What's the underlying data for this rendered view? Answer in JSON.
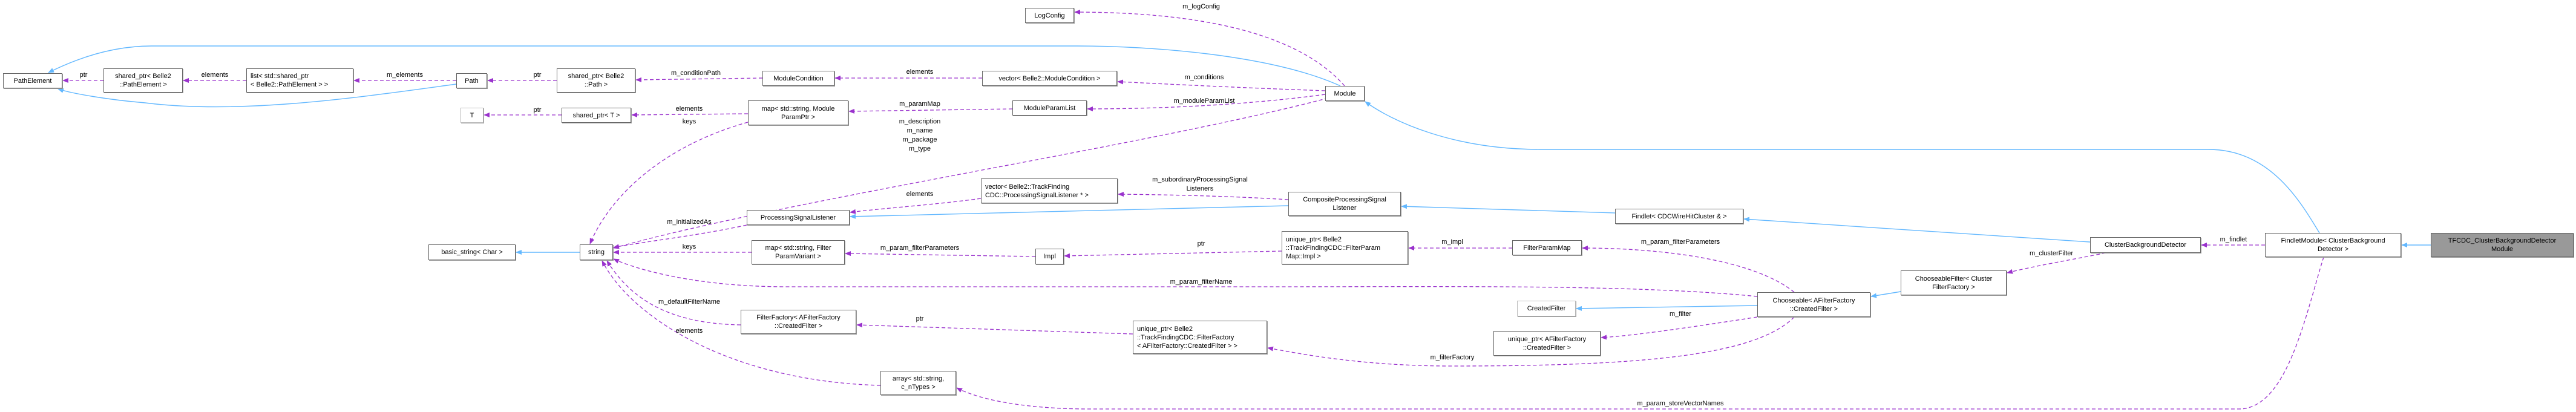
{
  "colors": {
    "association": "#9a32cd",
    "inheritance": "#63b8ff",
    "focus_fill": "#999999",
    "node_border": "#666666"
  },
  "nodes": [
    {
      "id": "PathElement",
      "lines": [
        "PathElement"
      ]
    },
    {
      "id": "SharedPtrPathElement",
      "lines": [
        "shared_ptr< Belle2",
        "::PathElement >"
      ]
    },
    {
      "id": "ListSharedPtr",
      "lines": [
        "list< std::shared_ptr",
        "< Belle2::PathElement > >"
      ]
    },
    {
      "id": "Path",
      "lines": [
        "Path"
      ]
    },
    {
      "id": "SharedPtrPath",
      "lines": [
        "shared_ptr< Belle2",
        "::Path >"
      ]
    },
    {
      "id": "T",
      "lines": [
        "T"
      ]
    },
    {
      "id": "SharedPtrT",
      "lines": [
        "shared_ptr< T >"
      ]
    },
    {
      "id": "LogConfig",
      "lines": [
        "LogConfig"
      ]
    },
    {
      "id": "ModuleCondition",
      "lines": [
        "ModuleCondition"
      ]
    },
    {
      "id": "VectorModuleCondition",
      "lines": [
        "vector< Belle2::ModuleCondition >"
      ]
    },
    {
      "id": "Module",
      "lines": [
        "Module"
      ]
    },
    {
      "id": "MapModuleParamPtr",
      "lines": [
        "map< std::string, Module",
        "ParamPtr >"
      ]
    },
    {
      "id": "ModuleParamList",
      "lines": [
        "ModuleParamList"
      ]
    },
    {
      "id": "BasicString",
      "lines": [
        "basic_string< Char >"
      ]
    },
    {
      "id": "String",
      "lines": [
        "string"
      ]
    },
    {
      "id": "VectorPSL",
      "lines": [
        "vector< Belle2::TrackFinding",
        "CDC::ProcessingSignalListener * >"
      ]
    },
    {
      "id": "ProcessingSignalListener",
      "lines": [
        "ProcessingSignalListener"
      ]
    },
    {
      "id": "CompositePSL",
      "lines": [
        "CompositeProcessingSignal",
        "Listener"
      ]
    },
    {
      "id": "MapFilterParamVariant",
      "lines": [
        "map< std::string, Filter",
        "ParamVariant >"
      ]
    },
    {
      "id": "Impl",
      "lines": [
        "Impl"
      ]
    },
    {
      "id": "UniquePtrImpl",
      "lines": [
        "unique_ptr< Belle2",
        "::TrackFindingCDC::FilterParam",
        "Map::Impl >"
      ]
    },
    {
      "id": "FilterParamMap",
      "lines": [
        "FilterParamMap"
      ]
    },
    {
      "id": "FilterFactory",
      "lines": [
        "FilterFactory< AFilterFactory",
        "::CreatedFilter >"
      ]
    },
    {
      "id": "UniquePtrFilterFactory",
      "lines": [
        "unique_ptr< Belle2",
        "::TrackFindingCDC::FilterFactory",
        "< AFilterFactory::CreatedFilter > >"
      ]
    },
    {
      "id": "ArrayString",
      "lines": [
        "array< std::string,",
        "c_nTypes >"
      ]
    },
    {
      "id": "CreatedFilter",
      "lines": [
        "CreatedFilter"
      ]
    },
    {
      "id": "UniquePtrCreatedFilter",
      "lines": [
        "unique_ptr< AFilterFactory",
        "::CreatedFilter >"
      ]
    },
    {
      "id": "Chooseable",
      "lines": [
        "Chooseable< AFilterFactory",
        "::CreatedFilter >"
      ]
    },
    {
      "id": "ChooseableFilter",
      "lines": [
        "ChooseableFilter< Cluster",
        "FilterFactory >"
      ]
    },
    {
      "id": "Findlet",
      "lines": [
        "Findlet< CDCWireHitCluster & >"
      ]
    },
    {
      "id": "ClusterBackgroundDetector",
      "lines": [
        "ClusterBackgroundDetector"
      ]
    },
    {
      "id": "FindletModule",
      "lines": [
        "FindletModule< ClusterBackground",
        "Detector >"
      ]
    },
    {
      "id": "TFCDCModule",
      "lines": [
        "TFCDC_ClusterBackgroundDetector",
        "Module"
      ]
    }
  ],
  "edges": [
    {
      "from": "SharedPtrPathElement",
      "to": "PathElement",
      "kind": "association",
      "label": [
        "ptr"
      ]
    },
    {
      "from": "ListSharedPtr",
      "to": "SharedPtrPathElement",
      "kind": "association",
      "label": [
        "elements"
      ]
    },
    {
      "from": "Path",
      "to": "ListSharedPtr",
      "kind": "association",
      "label": [
        "m_elements"
      ]
    },
    {
      "from": "SharedPtrPath",
      "to": "Path",
      "kind": "association",
      "label": [
        "ptr"
      ]
    },
    {
      "from": "ModuleCondition",
      "to": "SharedPtrPath",
      "kind": "association",
      "label": [
        "m_conditionPath"
      ]
    },
    {
      "from": "VectorModuleCondition",
      "to": "ModuleCondition",
      "kind": "association",
      "label": [
        "elements"
      ]
    },
    {
      "from": "Module",
      "to": "VectorModuleCondition",
      "kind": "association",
      "label": [
        "m_conditions"
      ]
    },
    {
      "from": "Module",
      "to": "LogConfig",
      "kind": "association",
      "label": [
        "m_logConfig"
      ]
    },
    {
      "from": "Module",
      "to": "ModuleParamList",
      "kind": "association",
      "label": [
        "m_moduleParamList"
      ]
    },
    {
      "from": "ModuleParamList",
      "to": "MapModuleParamPtr",
      "kind": "association",
      "label": [
        "m_paramMap"
      ]
    },
    {
      "from": "MapModuleParamPtr",
      "to": "SharedPtrT",
      "kind": "association",
      "label": [
        "elements"
      ]
    },
    {
      "from": "MapModuleParamPtr",
      "to": "String",
      "kind": "association",
      "label": [
        "keys"
      ]
    },
    {
      "from": "SharedPtrT",
      "to": "T",
      "kind": "association",
      "label": [
        "ptr"
      ]
    },
    {
      "from": "Module",
      "to": "String",
      "kind": "association",
      "label": [
        "m_description",
        "m_name",
        "m_package",
        "m_type"
      ]
    },
    {
      "from": "Module",
      "to": "PathElement",
      "kind": "inheritance",
      "label": []
    },
    {
      "from": "Path",
      "to": "PathElement",
      "kind": "inheritance",
      "label": []
    },
    {
      "from": "String",
      "to": "BasicString",
      "kind": "inheritance",
      "label": []
    },
    {
      "from": "CompositePSL",
      "to": "VectorPSL",
      "kind": "association",
      "label": [
        "m_subordinaryProcessingSignal",
        "Listeners"
      ]
    },
    {
      "from": "VectorPSL",
      "to": "ProcessingSignalListener",
      "kind": "association",
      "label": [
        "elements"
      ]
    },
    {
      "from": "CompositePSL",
      "to": "ProcessingSignalListener",
      "kind": "inheritance",
      "label": []
    },
    {
      "from": "ProcessingSignalListener",
      "to": "String",
      "kind": "association",
      "label": [
        "m_initializedAs"
      ]
    },
    {
      "from": "MapFilterParamVariant",
      "to": "String",
      "kind": "association",
      "label": [
        "keys"
      ]
    },
    {
      "from": "Impl",
      "to": "MapFilterParamVariant",
      "kind": "association",
      "label": [
        "m_param_filterParameters"
      ]
    },
    {
      "from": "UniquePtrImpl",
      "to": "Impl",
      "kind": "association",
      "label": [
        "ptr"
      ]
    },
    {
      "from": "FilterParamMap",
      "to": "UniquePtrImpl",
      "kind": "association",
      "label": [
        "m_impl"
      ]
    },
    {
      "from": "Chooseable",
      "to": "FilterParamMap",
      "kind": "association",
      "label": [
        "m_param_filterParameters"
      ]
    },
    {
      "from": "Chooseable",
      "to": "String",
      "kind": "association",
      "label": [
        "m_param_filterName"
      ]
    },
    {
      "from": "FilterFactory",
      "to": "String",
      "kind": "association",
      "label": [
        "m_defaultFilterName"
      ]
    },
    {
      "from": "ArrayString",
      "to": "String",
      "kind": "association",
      "label": [
        "elements"
      ]
    },
    {
      "from": "UniquePtrFilterFactory",
      "to": "FilterFactory",
      "kind": "association",
      "label": [
        "ptr"
      ]
    },
    {
      "from": "Chooseable",
      "to": "UniquePtrFilterFactory",
      "kind": "association",
      "label": [
        "m_filterFactory"
      ]
    },
    {
      "from": "Chooseable",
      "to": "CreatedFilter",
      "kind": "inheritance",
      "label": []
    },
    {
      "from": "Chooseable",
      "to": "UniquePtrCreatedFilter",
      "kind": "association",
      "label": [
        "m_filter"
      ]
    },
    {
      "from": "ChooseableFilter",
      "to": "Chooseable",
      "kind": "inheritance",
      "label": []
    },
    {
      "from": "ClusterBackgroundDetector",
      "to": "ChooseableFilter",
      "kind": "association",
      "label": [
        "m_clusterFilter"
      ]
    },
    {
      "from": "ClusterBackgroundDetector",
      "to": "Findlet",
      "kind": "inheritance",
      "label": []
    },
    {
      "from": "Findlet",
      "to": "CompositePSL",
      "kind": "inheritance",
      "label": []
    },
    {
      "from": "FindletModule",
      "to": "ClusterBackgroundDetector",
      "kind": "association",
      "label": [
        "m_findlet"
      ]
    },
    {
      "from": "FindletModule",
      "to": "Module",
      "kind": "inheritance",
      "label": []
    },
    {
      "from": "TFCDCModule",
      "to": "FindletModule",
      "kind": "inheritance",
      "label": []
    },
    {
      "from": "FindletModule",
      "to": "ArrayString",
      "kind": "association",
      "label": [
        "m_param_storeVectorNames"
      ]
    }
  ]
}
